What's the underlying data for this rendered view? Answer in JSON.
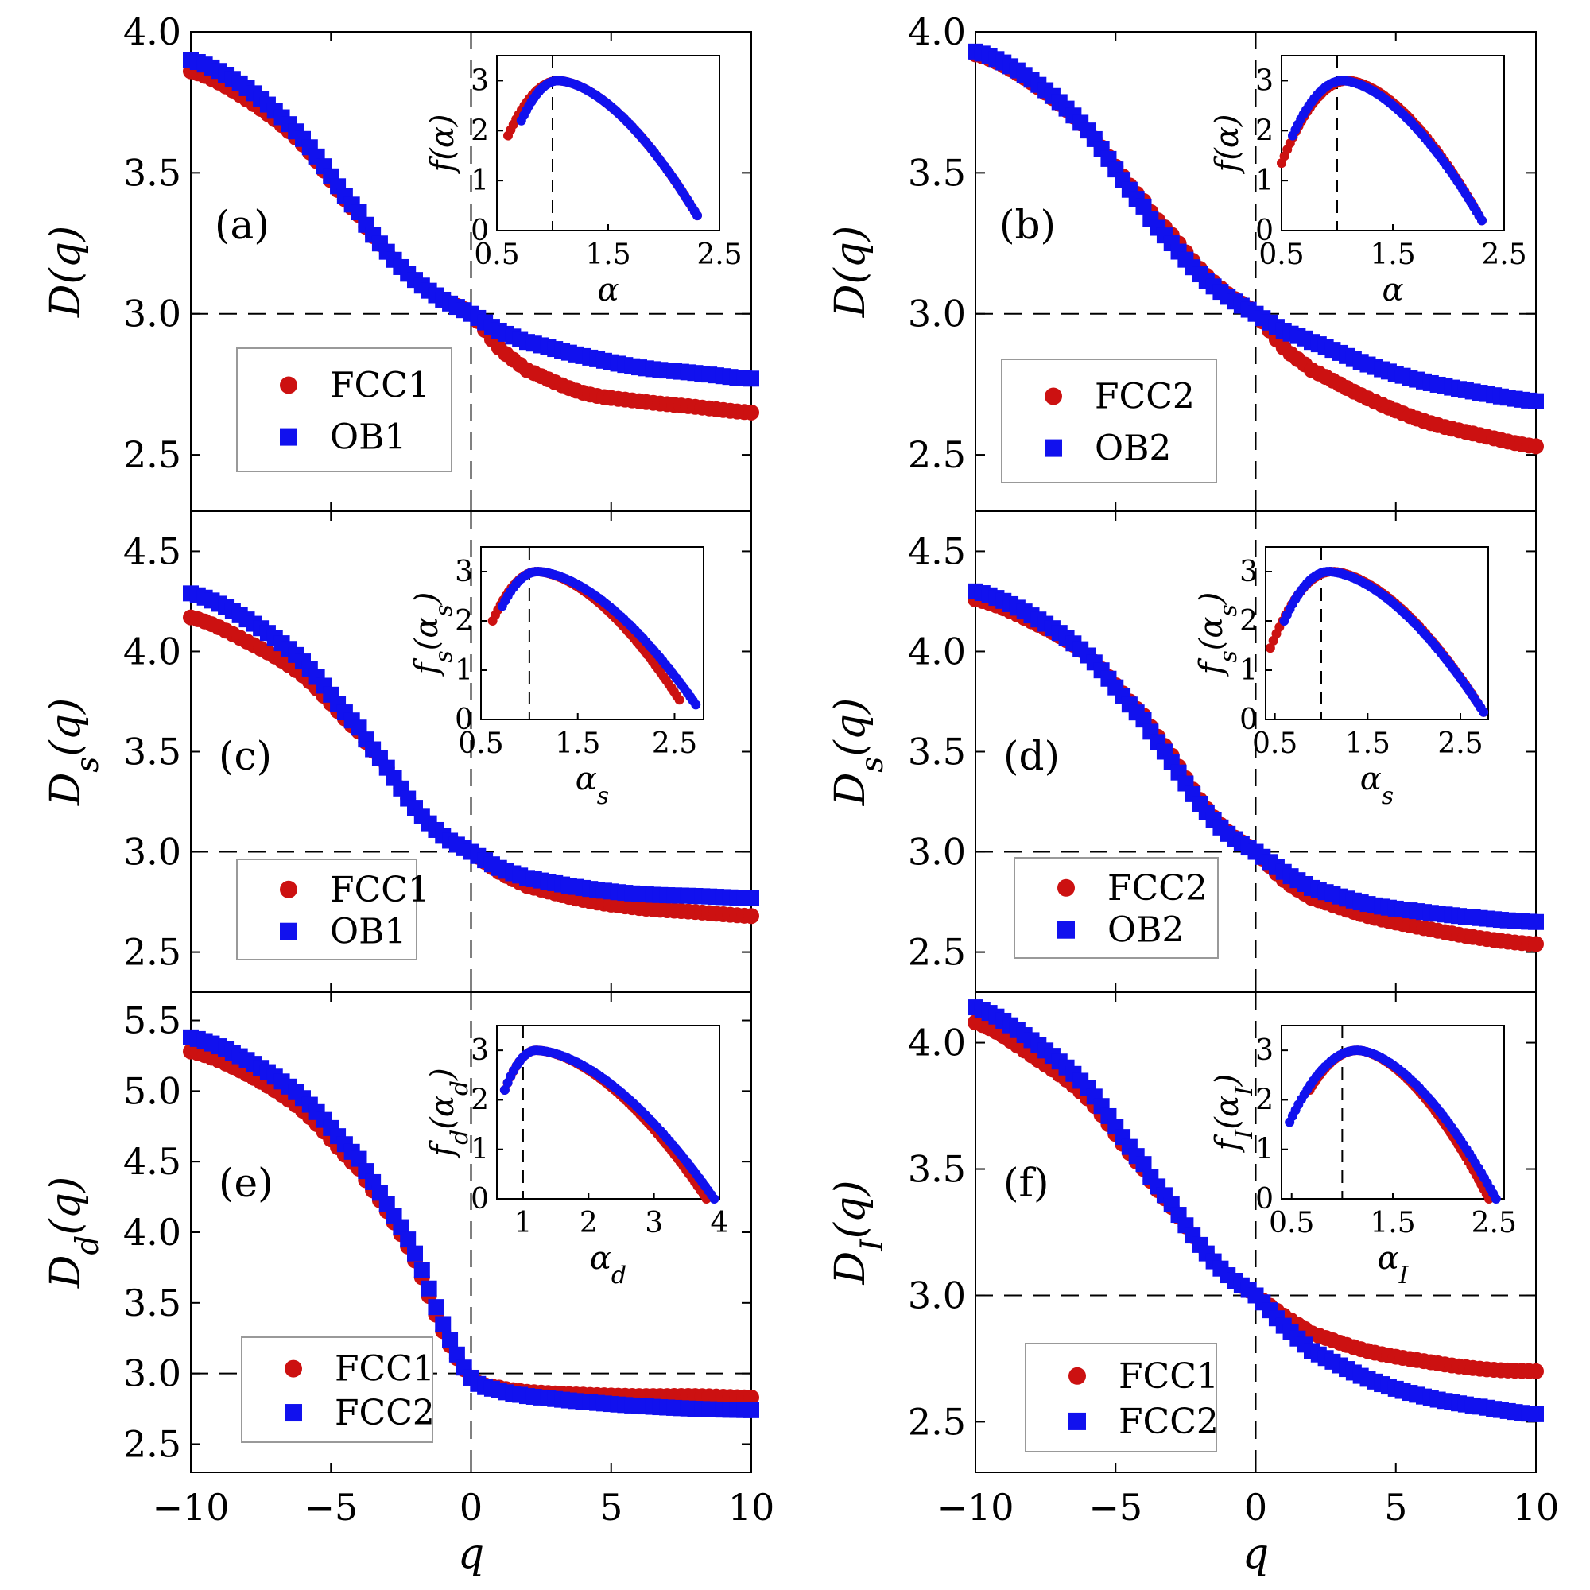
{
  "colors": {
    "series_a": "#cc1111",
    "series_b": "#1111ee",
    "axes": "#000000"
  },
  "chart_data": [
    {
      "id": "a",
      "type": "scatter",
      "panel_label": "(a)",
      "ylabel": "D(q)",
      "xlabel": "",
      "xlim": [
        -10,
        10
      ],
      "ylim": [
        2.3,
        4.0
      ],
      "yticks": [
        "2.5",
        "3.0",
        "3.5",
        "4.0"
      ],
      "ytick_values": [
        2.5,
        3.0,
        3.5,
        4.0
      ],
      "xticks": [],
      "xtick_values": [
        -10,
        -5,
        0,
        5,
        10
      ],
      "legend": [
        "FCC1",
        "OB1"
      ],
      "series": [
        {
          "name": "FCC1",
          "marker": "circle",
          "x": [
            -10,
            -8,
            -6,
            -4,
            -3,
            -2,
            -1,
            0,
            1,
            2,
            4,
            6,
            8,
            10
          ],
          "y": [
            3.86,
            3.76,
            3.6,
            3.35,
            3.22,
            3.12,
            3.05,
            3.0,
            2.88,
            2.8,
            2.72,
            2.69,
            2.67,
            2.65
          ]
        },
        {
          "name": "OB1",
          "marker": "square",
          "x": [
            -10,
            -8,
            -6,
            -4,
            -3,
            -2,
            -1,
            0,
            1,
            2,
            4,
            6,
            8,
            10
          ],
          "y": [
            3.9,
            3.8,
            3.62,
            3.36,
            3.22,
            3.12,
            3.05,
            3.0,
            2.94,
            2.9,
            2.85,
            2.81,
            2.79,
            2.77
          ]
        }
      ],
      "inset": {
        "xlabel": "α",
        "ylabel": "f(α)",
        "xlim": [
          0.5,
          2.5
        ],
        "ylim": [
          0,
          3.5
        ],
        "xticks": [
          "0.5",
          "1.5",
          "2.5"
        ],
        "xtick_values": [
          0.5,
          1.5,
          2.5
        ],
        "yticks": [
          "0",
          "1",
          "2",
          "3"
        ],
        "ytick_values": [
          0,
          1,
          2,
          3
        ],
        "vline": 1.0,
        "series": [
          {
            "name": "FCC1",
            "a_min": 0.6,
            "a_peak": 1.05,
            "a_max": 2.3,
            "f_start": 1.9,
            "f_end": 0.3
          },
          {
            "name": "OB1",
            "a_min": 0.72,
            "a_peak": 1.05,
            "a_max": 2.3,
            "f_start": 2.2,
            "f_end": 0.3
          }
        ]
      }
    },
    {
      "id": "b",
      "type": "scatter",
      "panel_label": "(b)",
      "ylabel": "D(q)",
      "xlabel": "",
      "xlim": [
        -10,
        10
      ],
      "ylim": [
        2.3,
        4.0
      ],
      "yticks": [
        "2.5",
        "3.0",
        "3.5",
        "4.0"
      ],
      "ytick_values": [
        2.5,
        3.0,
        3.5,
        4.0
      ],
      "xticks": [],
      "xtick_values": [
        -10,
        -5,
        0,
        5,
        10
      ],
      "legend": [
        "FCC2",
        "OB2"
      ],
      "series": [
        {
          "name": "FCC2",
          "marker": "circle",
          "x": [
            -10,
            -8,
            -6,
            -4,
            -3,
            -2,
            -1,
            0,
            1,
            2,
            4,
            6,
            8,
            10
          ],
          "y": [
            3.92,
            3.82,
            3.65,
            3.4,
            3.28,
            3.16,
            3.07,
            3.0,
            2.88,
            2.8,
            2.7,
            2.62,
            2.57,
            2.53
          ]
        },
        {
          "name": "OB2",
          "marker": "square",
          "x": [
            -10,
            -8,
            -6,
            -4,
            -3,
            -2,
            -1,
            0,
            1,
            2,
            4,
            6,
            8,
            10
          ],
          "y": [
            3.93,
            3.83,
            3.65,
            3.38,
            3.25,
            3.14,
            3.06,
            3.0,
            2.94,
            2.9,
            2.82,
            2.76,
            2.72,
            2.69
          ]
        }
      ],
      "inset": {
        "xlabel": "α",
        "ylabel": "f(α)",
        "xlim": [
          0.5,
          2.5
        ],
        "ylim": [
          0,
          3.5
        ],
        "xticks": [
          "0.5",
          "1.5",
          "2.5"
        ],
        "xtick_values": [
          0.5,
          1.5,
          2.5
        ],
        "yticks": [
          "0",
          "1",
          "2",
          "3"
        ],
        "ytick_values": [
          0,
          1,
          2,
          3
        ],
        "vline": 1.0,
        "series": [
          {
            "name": "FCC2",
            "a_min": 0.5,
            "a_peak": 1.1,
            "a_max": 2.3,
            "f_start": 1.35,
            "f_end": 0.2
          },
          {
            "name": "OB2",
            "a_min": 0.6,
            "a_peak": 1.05,
            "a_max": 2.3,
            "f_start": 1.9,
            "f_end": 0.2
          }
        ]
      }
    },
    {
      "id": "c",
      "type": "scatter",
      "panel_label": "(c)",
      "ylabel": "D_s(q)",
      "xlabel": "",
      "xlim": [
        -10,
        10
      ],
      "ylim": [
        2.3,
        4.7
      ],
      "yticks": [
        "2.5",
        "3.0",
        "3.5",
        "4.0",
        "4.5"
      ],
      "ytick_values": [
        2.5,
        3.0,
        3.5,
        4.0,
        4.5
      ],
      "xticks": [],
      "xtick_values": [
        -10,
        -5,
        0,
        5,
        10
      ],
      "legend": [
        "FCC1",
        "OB1"
      ],
      "series": [
        {
          "name": "FCC1",
          "marker": "circle",
          "x": [
            -10,
            -8,
            -6,
            -4,
            -3,
            -2,
            -1,
            0,
            1,
            2,
            4,
            6,
            8,
            10
          ],
          "y": [
            4.17,
            4.05,
            3.88,
            3.6,
            3.42,
            3.22,
            3.08,
            3.0,
            2.9,
            2.83,
            2.76,
            2.72,
            2.7,
            2.68
          ]
        },
        {
          "name": "OB1",
          "marker": "square",
          "x": [
            -10,
            -8,
            -6,
            -4,
            -3,
            -2,
            -1,
            0,
            1,
            2,
            4,
            6,
            8,
            10
          ],
          "y": [
            4.29,
            4.16,
            3.95,
            3.62,
            3.42,
            3.22,
            3.08,
            3.0,
            2.92,
            2.87,
            2.82,
            2.79,
            2.78,
            2.77
          ]
        }
      ],
      "inset": {
        "xlabel": "α_s",
        "ylabel": "f_s(α_s)",
        "xlim": [
          0.5,
          2.8
        ],
        "ylim": [
          0,
          3.5
        ],
        "xticks": [
          "0.5",
          "1.5",
          "2.5"
        ],
        "xtick_values": [
          0.5,
          1.5,
          2.5
        ],
        "yticks": [
          "0",
          "1",
          "2",
          "3"
        ],
        "ytick_values": [
          0,
          1,
          2,
          3
        ],
        "vline": 1.0,
        "series": [
          {
            "name": "FCC1",
            "a_min": 0.62,
            "a_peak": 1.08,
            "a_max": 2.55,
            "f_start": 2.0,
            "f_end": 0.4
          },
          {
            "name": "OB1",
            "a_min": 0.72,
            "a_peak": 1.08,
            "a_max": 2.72,
            "f_start": 2.3,
            "f_end": 0.3
          }
        ]
      }
    },
    {
      "id": "d",
      "type": "scatter",
      "panel_label": "(d)",
      "ylabel": "D_s(q)",
      "xlabel": "",
      "xlim": [
        -10,
        10
      ],
      "ylim": [
        2.3,
        4.7
      ],
      "yticks": [
        "2.5",
        "3.0",
        "3.5",
        "4.0",
        "4.5"
      ],
      "ytick_values": [
        2.5,
        3.0,
        3.5,
        4.0,
        4.5
      ],
      "xticks": [],
      "xtick_values": [
        -10,
        -5,
        0,
        5,
        10
      ],
      "legend": [
        "FCC2",
        "OB2"
      ],
      "series": [
        {
          "name": "FCC2",
          "marker": "circle",
          "x": [
            -10,
            -8,
            -6,
            -4,
            -3,
            -2,
            -1,
            0,
            1,
            2,
            4,
            6,
            8,
            10
          ],
          "y": [
            4.26,
            4.15,
            3.98,
            3.68,
            3.48,
            3.26,
            3.1,
            3.0,
            2.86,
            2.77,
            2.68,
            2.62,
            2.57,
            2.54
          ]
        },
        {
          "name": "OB2",
          "marker": "square",
          "x": [
            -10,
            -8,
            -6,
            -4,
            -3,
            -2,
            -1,
            0,
            1,
            2,
            4,
            6,
            8,
            10
          ],
          "y": [
            4.3,
            4.18,
            3.98,
            3.66,
            3.45,
            3.24,
            3.09,
            3.0,
            2.9,
            2.82,
            2.74,
            2.7,
            2.67,
            2.65
          ]
        }
      ],
      "inset": {
        "xlabel": "α_s",
        "ylabel": "f_s(α_s)",
        "xlim": [
          0.4,
          2.8
        ],
        "ylim": [
          0,
          3.5
        ],
        "xticks": [
          "0.5",
          "1.5",
          "2.5"
        ],
        "xtick_values": [
          0.5,
          1.5,
          2.5
        ],
        "yticks": [
          "0",
          "1",
          "2",
          "3"
        ],
        "ytick_values": [
          0,
          1,
          2,
          3
        ],
        "vline": 1.0,
        "series": [
          {
            "name": "FCC2",
            "a_min": 0.45,
            "a_peak": 1.12,
            "a_max": 2.75,
            "f_start": 1.45,
            "f_end": 0.15
          },
          {
            "name": "OB2",
            "a_min": 0.6,
            "a_peak": 1.08,
            "a_max": 2.75,
            "f_start": 2.0,
            "f_end": 0.15
          }
        ]
      }
    },
    {
      "id": "e",
      "type": "scatter",
      "panel_label": "(e)",
      "ylabel": "D_d(q)",
      "xlabel": "q",
      "xlim": [
        -10,
        10
      ],
      "ylim": [
        2.3,
        5.7
      ],
      "yticks": [
        "2.5",
        "3.0",
        "3.5",
        "4.0",
        "4.5",
        "5.0",
        "5.5"
      ],
      "ytick_values": [
        2.5,
        3.0,
        3.5,
        4.0,
        4.5,
        5.0,
        5.5
      ],
      "xticks": [
        "−10",
        "−5",
        "0",
        "5",
        "10"
      ],
      "xtick_values": [
        -10,
        -5,
        0,
        5,
        10
      ],
      "legend": [
        "FCC1",
        "FCC2"
      ],
      "series": [
        {
          "name": "FCC1",
          "marker": "circle",
          "x": [
            -10,
            -8,
            -6,
            -4,
            -3,
            -2,
            -1,
            0,
            1,
            2,
            4,
            6,
            8,
            10
          ],
          "y": [
            5.28,
            5.12,
            4.86,
            4.45,
            4.15,
            3.8,
            3.3,
            2.97,
            2.9,
            2.87,
            2.85,
            2.84,
            2.84,
            2.83
          ]
        },
        {
          "name": "FCC2",
          "marker": "square",
          "x": [
            -10,
            -8,
            -6,
            -4,
            -3,
            -2,
            -1,
            0,
            1,
            2,
            4,
            6,
            8,
            10
          ],
          "y": [
            5.38,
            5.22,
            4.95,
            4.52,
            4.2,
            3.85,
            3.35,
            2.97,
            2.88,
            2.84,
            2.8,
            2.77,
            2.75,
            2.74
          ]
        }
      ],
      "inset": {
        "xlabel": "α_d",
        "ylabel": "f_d(α_d)",
        "xlim": [
          0.6,
          4.0
        ],
        "ylim": [
          0,
          3.5
        ],
        "xticks": [
          "1",
          "2",
          "3",
          "4"
        ],
        "xtick_values": [
          1,
          2,
          3,
          4
        ],
        "yticks": [
          "0",
          "1",
          "2",
          "3"
        ],
        "ytick_values": [
          0,
          1,
          2,
          3
        ],
        "vline": 1.0,
        "series": [
          {
            "name": "FCC1",
            "a_min": 0.72,
            "a_peak": 1.2,
            "a_max": 3.8,
            "f_start": 2.2,
            "f_end": 0.0
          },
          {
            "name": "FCC2",
            "a_min": 0.72,
            "a_peak": 1.2,
            "a_max": 3.92,
            "f_start": 2.2,
            "f_end": 0.0
          }
        ]
      }
    },
    {
      "id": "f",
      "type": "scatter",
      "panel_label": "(f)",
      "ylabel": "D_I(q)",
      "xlabel": "q",
      "xlim": [
        -10,
        10
      ],
      "ylim": [
        2.3,
        4.2
      ],
      "yticks": [
        "2.5",
        "3.0",
        "3.5",
        "4.0"
      ],
      "ytick_values": [
        2.5,
        3.0,
        3.5,
        4.0
      ],
      "xticks": [
        "−10",
        "−5",
        "0",
        "5",
        "10"
      ],
      "xtick_values": [
        -10,
        -5,
        0,
        5,
        10
      ],
      "legend": [
        "FCC1",
        "FCC2"
      ],
      "series": [
        {
          "name": "FCC1",
          "marker": "circle",
          "x": [
            -10,
            -8,
            -6,
            -4,
            -3,
            -2,
            -1,
            0,
            1,
            2,
            4,
            6,
            8,
            10
          ],
          "y": [
            4.08,
            3.95,
            3.78,
            3.5,
            3.35,
            3.2,
            3.08,
            3.0,
            2.92,
            2.85,
            2.78,
            2.74,
            2.71,
            2.7
          ]
        },
        {
          "name": "FCC2",
          "marker": "square",
          "x": [
            -10,
            -8,
            -6,
            -4,
            -3,
            -2,
            -1,
            0,
            1,
            2,
            4,
            6,
            8,
            10
          ],
          "y": [
            4.14,
            4.01,
            3.82,
            3.52,
            3.36,
            3.2,
            3.08,
            3.0,
            2.88,
            2.78,
            2.67,
            2.6,
            2.56,
            2.53
          ]
        }
      ],
      "inset": {
        "xlabel": "α_I",
        "ylabel": "f_I(α_I)",
        "xlim": [
          0.4,
          2.6
        ],
        "ylim": [
          0,
          3.5
        ],
        "xticks": [
          "0.5",
          "1.5",
          "2.5"
        ],
        "xtick_values": [
          0.5,
          1.5,
          2.5
        ],
        "yticks": [
          "0",
          "1",
          "2",
          "3"
        ],
        "ytick_values": [
          0,
          1,
          2,
          3
        ],
        "vline": 1.0,
        "series": [
          {
            "name": "FCC1",
            "a_min": 0.68,
            "a_peak": 1.15,
            "a_max": 2.45,
            "f_start": 2.2,
            "f_end": 0.0
          },
          {
            "name": "FCC2",
            "a_min": 0.48,
            "a_peak": 1.15,
            "a_max": 2.52,
            "f_start": 1.55,
            "f_end": 0.0
          }
        ]
      }
    }
  ]
}
